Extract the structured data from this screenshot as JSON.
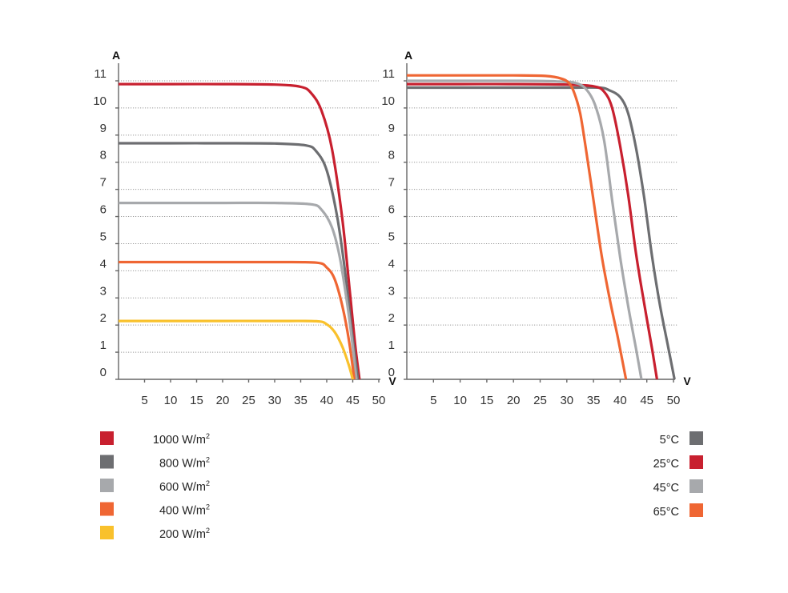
{
  "chart_data": [
    {
      "type": "line",
      "xlabel": "V",
      "ylabel": "A",
      "xlim": [
        0,
        50
      ],
      "ylim": [
        0,
        11
      ],
      "x_ticks": [
        "5",
        "10",
        "15",
        "20",
        "25",
        "30",
        "35",
        "40",
        "45",
        "50"
      ],
      "y_ticks": [
        "0",
        "1",
        "2",
        "3",
        "4",
        "5",
        "6",
        "7",
        "8",
        "9",
        "10",
        "11"
      ],
      "grid": true,
      "legend_position": "bottom-left",
      "series": [
        {
          "name": "1000 W/m",
          "sup": "2",
          "color": "#c8202f",
          "isc": 10.88,
          "voc": 46.3,
          "knee_v": 36.0,
          "points": [
            [
              0,
              10.88
            ],
            [
              10,
              10.88
            ],
            [
              20,
              10.88
            ],
            [
              30,
              10.86
            ],
            [
              35,
              10.78
            ],
            [
              37,
              10.55
            ],
            [
              39,
              9.9
            ],
            [
              41,
              8.5
            ],
            [
              43,
              5.9
            ],
            [
              44.5,
              3.1
            ],
            [
              45.5,
              1.2
            ],
            [
              46.3,
              0
            ]
          ]
        },
        {
          "name": "800 W/m",
          "sup": "2",
          "color": "#6d6e71",
          "isc": 8.7,
          "voc": 46.0,
          "knee_v": 37.0,
          "points": [
            [
              0,
              8.7
            ],
            [
              10,
              8.7
            ],
            [
              20,
              8.7
            ],
            [
              30,
              8.69
            ],
            [
              36,
              8.62
            ],
            [
              38,
              8.4
            ],
            [
              40,
              7.7
            ],
            [
              42,
              6.0
            ],
            [
              43.5,
              4.0
            ],
            [
              44.8,
              1.8
            ],
            [
              46.0,
              0
            ]
          ]
        },
        {
          "name": "600 W/m",
          "sup": "2",
          "color": "#a7a9ac",
          "isc": 6.5,
          "voc": 45.7,
          "knee_v": 38.0,
          "points": [
            [
              0,
              6.5
            ],
            [
              10,
              6.5
            ],
            [
              20,
              6.5
            ],
            [
              30,
              6.5
            ],
            [
              37,
              6.45
            ],
            [
              39,
              6.25
            ],
            [
              41,
              5.6
            ],
            [
              42.5,
              4.5
            ],
            [
              44,
              2.7
            ],
            [
              45,
              1.2
            ],
            [
              45.7,
              0
            ]
          ]
        },
        {
          "name": "400 W/m",
          "sup": "2",
          "color": "#ef6633",
          "isc": 4.32,
          "voc": 45.3,
          "knee_v": 39.0,
          "points": [
            [
              0,
              4.32
            ],
            [
              10,
              4.32
            ],
            [
              20,
              4.32
            ],
            [
              30,
              4.32
            ],
            [
              38,
              4.3
            ],
            [
              40,
              4.12
            ],
            [
              41.5,
              3.7
            ],
            [
              43,
              2.7
            ],
            [
              44.3,
              1.4
            ],
            [
              45.3,
              0
            ]
          ]
        },
        {
          "name": "200 W/m",
          "sup": "2",
          "color": "#f9c12c",
          "isc": 2.15,
          "voc": 45.0,
          "knee_v": 39.0,
          "points": [
            [
              0,
              2.15
            ],
            [
              10,
              2.15
            ],
            [
              20,
              2.15
            ],
            [
              30,
              2.15
            ],
            [
              38,
              2.14
            ],
            [
              40,
              2.03
            ],
            [
              41.5,
              1.75
            ],
            [
              43,
              1.2
            ],
            [
              44.2,
              0.55
            ],
            [
              45.0,
              0
            ]
          ]
        }
      ]
    },
    {
      "type": "line",
      "xlabel": "V",
      "ylabel": "A",
      "xlim": [
        0,
        50
      ],
      "ylim": [
        0,
        11
      ],
      "x_ticks": [
        "5",
        "10",
        "15",
        "20",
        "25",
        "30",
        "35",
        "40",
        "45",
        "50"
      ],
      "y_ticks": [
        "0",
        "1",
        "2",
        "3",
        "4",
        "5",
        "6",
        "7",
        "8",
        "9",
        "10",
        "11"
      ],
      "grid": true,
      "legend_position": "bottom-right",
      "series": [
        {
          "name": "5°C",
          "color": "#6d6e71",
          "points": [
            [
              0,
              10.75
            ],
            [
              10,
              10.75
            ],
            [
              20,
              10.75
            ],
            [
              30,
              10.75
            ],
            [
              36,
              10.75
            ],
            [
              38,
              10.65
            ],
            [
              40,
              10.4
            ],
            [
              41.5,
              9.8
            ],
            [
              43,
              8.5
            ],
            [
              44.5,
              6.7
            ],
            [
              46,
              4.5
            ],
            [
              47.5,
              2.7
            ],
            [
              49,
              1.2
            ],
            [
              50.2,
              0
            ]
          ]
        },
        {
          "name": "25°C",
          "color": "#c8202f",
          "points": [
            [
              0,
              10.88
            ],
            [
              10,
              10.88
            ],
            [
              20,
              10.88
            ],
            [
              30,
              10.86
            ],
            [
              35,
              10.8
            ],
            [
              37,
              10.6
            ],
            [
              38.5,
              10.0
            ],
            [
              40,
              8.6
            ],
            [
              41.5,
              6.8
            ],
            [
              43,
              4.6
            ],
            [
              44.5,
              2.8
            ],
            [
              46,
              1.1
            ],
            [
              46.9,
              0
            ]
          ]
        },
        {
          "name": "45°C",
          "color": "#a7a9ac",
          "points": [
            [
              0,
              11.0
            ],
            [
              10,
              11.0
            ],
            [
              20,
              11.0
            ],
            [
              28,
              10.98
            ],
            [
              32,
              10.9
            ],
            [
              34,
              10.6
            ],
            [
              35.5,
              10.0
            ],
            [
              37,
              8.8
            ],
            [
              38.5,
              6.6
            ],
            [
              40,
              4.5
            ],
            [
              41.5,
              2.7
            ],
            [
              43,
              1.1
            ],
            [
              44.0,
              0
            ]
          ]
        },
        {
          "name": "65°C",
          "color": "#ef6633",
          "points": [
            [
              0,
              11.2
            ],
            [
              10,
              11.2
            ],
            [
              20,
              11.2
            ],
            [
              26,
              11.18
            ],
            [
              29,
              11.08
            ],
            [
              30.5,
              10.9
            ],
            [
              31.5,
              10.5
            ],
            [
              32.5,
              9.8
            ],
            [
              33.5,
              8.6
            ],
            [
              35,
              6.6
            ],
            [
              36.5,
              4.6
            ],
            [
              38,
              3.0
            ],
            [
              39.5,
              1.6
            ],
            [
              41.1,
              0
            ]
          ]
        }
      ]
    }
  ]
}
